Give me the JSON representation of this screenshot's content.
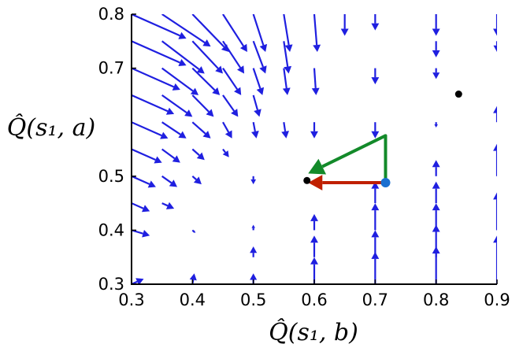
{
  "chart_data": {
    "type": "quiver",
    "xlabel": "Q̂(s₁, b)",
    "ylabel": "Q̂(s₁, a)",
    "xlim": [
      0.3,
      0.9
    ],
    "ylim": [
      0.3,
      0.8
    ],
    "xticks": [
      "0.3",
      "0.4",
      "0.5",
      "0.6",
      "0.7",
      "0.8",
      "0.9"
    ],
    "yticks": [
      "0.3",
      "0.4",
      "0.5",
      "0.7",
      "0.8"
    ],
    "ytick_values": [
      0.3,
      0.4,
      0.5,
      0.7,
      0.8
    ],
    "grid": false,
    "vector_field": {
      "color": "#1f1fe0",
      "arrows": [
        {
          "x": 0.3,
          "y": 0.8,
          "dx": 0.09,
          "dy": -0.045
        },
        {
          "x": 0.3,
          "y": 0.75,
          "dx": 0.09,
          "dy": -0.045
        },
        {
          "x": 0.3,
          "y": 0.7,
          "dx": 0.08,
          "dy": -0.04
        },
        {
          "x": 0.3,
          "y": 0.65,
          "dx": 0.07,
          "dy": -0.035
        },
        {
          "x": 0.3,
          "y": 0.6,
          "dx": 0.06,
          "dy": -0.03
        },
        {
          "x": 0.3,
          "y": 0.55,
          "dx": 0.05,
          "dy": -0.025
        },
        {
          "x": 0.3,
          "y": 0.5,
          "dx": 0.04,
          "dy": -0.02
        },
        {
          "x": 0.3,
          "y": 0.45,
          "dx": 0.03,
          "dy": -0.015
        },
        {
          "x": 0.3,
          "y": 0.4,
          "dx": 0.03,
          "dy": -0.01
        },
        {
          "x": 0.3,
          "y": 0.3,
          "dx": 0.02,
          "dy": 0.01
        },
        {
          "x": 0.35,
          "y": 0.8,
          "dx": 0.08,
          "dy": -0.06
        },
        {
          "x": 0.35,
          "y": 0.75,
          "dx": 0.07,
          "dy": -0.06
        },
        {
          "x": 0.35,
          "y": 0.7,
          "dx": 0.06,
          "dy": -0.05
        },
        {
          "x": 0.35,
          "y": 0.65,
          "dx": 0.05,
          "dy": -0.04
        },
        {
          "x": 0.35,
          "y": 0.6,
          "dx": 0.04,
          "dy": -0.03
        },
        {
          "x": 0.35,
          "y": 0.55,
          "dx": 0.03,
          "dy": -0.025
        },
        {
          "x": 0.35,
          "y": 0.5,
          "dx": 0.025,
          "dy": -0.02
        },
        {
          "x": 0.35,
          "y": 0.45,
          "dx": 0.02,
          "dy": -0.01
        },
        {
          "x": 0.4,
          "y": 0.8,
          "dx": 0.06,
          "dy": -0.07
        },
        {
          "x": 0.4,
          "y": 0.75,
          "dx": 0.05,
          "dy": -0.06
        },
        {
          "x": 0.4,
          "y": 0.7,
          "dx": 0.045,
          "dy": -0.05
        },
        {
          "x": 0.4,
          "y": 0.65,
          "dx": 0.035,
          "dy": -0.04
        },
        {
          "x": 0.4,
          "y": 0.6,
          "dx": 0.03,
          "dy": -0.03
        },
        {
          "x": 0.4,
          "y": 0.55,
          "dx": 0.02,
          "dy": -0.02
        },
        {
          "x": 0.4,
          "y": 0.5,
          "dx": 0.015,
          "dy": -0.015
        },
        {
          "x": 0.4,
          "y": 0.4,
          "dx": 0.005,
          "dy": -0.005
        },
        {
          "x": 0.4,
          "y": 0.3,
          "dx": 0.003,
          "dy": 0.02
        },
        {
          "x": 0.45,
          "y": 0.8,
          "dx": 0.04,
          "dy": -0.07
        },
        {
          "x": 0.45,
          "y": 0.75,
          "dx": 0.035,
          "dy": -0.06
        },
        {
          "x": 0.45,
          "y": 0.7,
          "dx": 0.03,
          "dy": -0.05
        },
        {
          "x": 0.45,
          "y": 0.65,
          "dx": 0.025,
          "dy": -0.04
        },
        {
          "x": 0.45,
          "y": 0.6,
          "dx": 0.015,
          "dy": -0.03
        },
        {
          "x": 0.45,
          "y": 0.55,
          "dx": 0.01,
          "dy": -0.015
        },
        {
          "x": 0.5,
          "y": 0.8,
          "dx": 0.02,
          "dy": -0.07
        },
        {
          "x": 0.5,
          "y": 0.75,
          "dx": 0.02,
          "dy": -0.06
        },
        {
          "x": 0.5,
          "y": 0.7,
          "dx": 0.015,
          "dy": -0.05
        },
        {
          "x": 0.5,
          "y": 0.65,
          "dx": 0.01,
          "dy": -0.04
        },
        {
          "x": 0.5,
          "y": 0.6,
          "dx": 0.005,
          "dy": -0.03
        },
        {
          "x": 0.5,
          "y": 0.5,
          "dx": 0.0,
          "dy": -0.015
        },
        {
          "x": 0.5,
          "y": 0.4,
          "dx": 0.0,
          "dy": 0.01
        },
        {
          "x": 0.5,
          "y": 0.35,
          "dx": 0.0,
          "dy": 0.02
        },
        {
          "x": 0.5,
          "y": 0.3,
          "dx": 0.0,
          "dy": 0.02
        },
        {
          "x": 0.55,
          "y": 0.8,
          "dx": 0.01,
          "dy": -0.07
        },
        {
          "x": 0.55,
          "y": 0.75,
          "dx": 0.008,
          "dy": -0.06
        },
        {
          "x": 0.55,
          "y": 0.7,
          "dx": 0.006,
          "dy": -0.05
        },
        {
          "x": 0.55,
          "y": 0.6,
          "dx": 0.004,
          "dy": -0.03
        },
        {
          "x": 0.6,
          "y": 0.8,
          "dx": 0.005,
          "dy": -0.07
        },
        {
          "x": 0.6,
          "y": 0.7,
          "dx": 0.003,
          "dy": -0.05
        },
        {
          "x": 0.6,
          "y": 0.6,
          "dx": 0.0,
          "dy": -0.03
        },
        {
          "x": 0.6,
          "y": 0.4,
          "dx": 0.0,
          "dy": 0.03
        },
        {
          "x": 0.6,
          "y": 0.35,
          "dx": 0.0,
          "dy": 0.04
        },
        {
          "x": 0.6,
          "y": 0.3,
          "dx": 0.0,
          "dy": 0.05
        },
        {
          "x": 0.65,
          "y": 0.8,
          "dx": 0.0,
          "dy": -0.04
        },
        {
          "x": 0.7,
          "y": 0.8,
          "dx": 0.0,
          "dy": -0.03
        },
        {
          "x": 0.7,
          "y": 0.7,
          "dx": 0.0,
          "dy": -0.03
        },
        {
          "x": 0.7,
          "y": 0.6,
          "dx": 0.0,
          "dy": -0.03
        },
        {
          "x": 0.7,
          "y": 0.45,
          "dx": 0.0,
          "dy": 0.04
        },
        {
          "x": 0.7,
          "y": 0.4,
          "dx": 0.0,
          "dy": 0.05
        },
        {
          "x": 0.7,
          "y": 0.35,
          "dx": 0.0,
          "dy": 0.05
        },
        {
          "x": 0.7,
          "y": 0.3,
          "dx": 0.0,
          "dy": 0.06
        },
        {
          "x": 0.8,
          "y": 0.8,
          "dx": 0.0,
          "dy": -0.04
        },
        {
          "x": 0.8,
          "y": 0.75,
          "dx": 0.0,
          "dy": -0.03
        },
        {
          "x": 0.8,
          "y": 0.7,
          "dx": 0.0,
          "dy": -0.02
        },
        {
          "x": 0.8,
          "y": 0.6,
          "dx": 0.0,
          "dy": -0.01
        },
        {
          "x": 0.8,
          "y": 0.5,
          "dx": 0.0,
          "dy": 0.03
        },
        {
          "x": 0.8,
          "y": 0.45,
          "dx": 0.0,
          "dy": 0.04
        },
        {
          "x": 0.8,
          "y": 0.4,
          "dx": 0.0,
          "dy": 0.05
        },
        {
          "x": 0.8,
          "y": 0.35,
          "dx": 0.0,
          "dy": 0.06
        },
        {
          "x": 0.8,
          "y": 0.3,
          "dx": 0.0,
          "dy": 0.07
        },
        {
          "x": 0.9,
          "y": 0.8,
          "dx": 0.0,
          "dy": -0.04
        },
        {
          "x": 0.9,
          "y": 0.75,
          "dx": 0.0,
          "dy": -0.02
        },
        {
          "x": 0.9,
          "y": 0.6,
          "dx": 0.0,
          "dy": 0.03
        },
        {
          "x": 0.9,
          "y": 0.5,
          "dx": 0.0,
          "dy": 0.06
        },
        {
          "x": 0.9,
          "y": 0.4,
          "dx": 0.0,
          "dy": 0.07
        },
        {
          "x": 0.9,
          "y": 0.3,
          "dx": 0.0,
          "dy": 0.09
        }
      ]
    },
    "points": [
      {
        "x": 0.588,
        "y": 0.492,
        "color": "#000000"
      },
      {
        "x": 0.837,
        "y": 0.652,
        "color": "#000000"
      },
      {
        "x": 0.717,
        "y": 0.488,
        "color": "#1a6fd0"
      }
    ],
    "highlight_arrows": [
      {
        "from": [
          0.717,
          0.488
        ],
        "to": [
          0.59,
          0.488
        ],
        "color": "#c02000"
      },
      {
        "path": [
          [
            0.717,
            0.488
          ],
          [
            0.717,
            0.575
          ],
          [
            0.59,
            0.505
          ]
        ],
        "color": "#138a2a"
      }
    ]
  }
}
